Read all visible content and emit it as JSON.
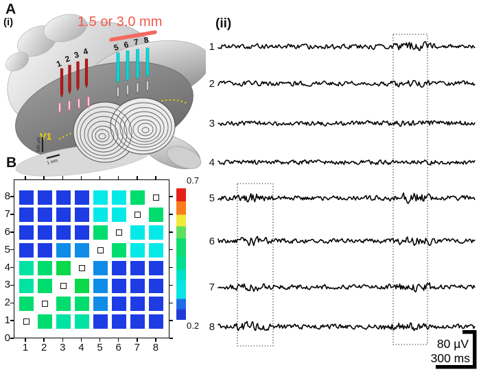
{
  "panel_a": {
    "label": "A",
    "sublabel": "(i)",
    "distance_label": "1.5 or 3.0 mm",
    "v1_label": "V1",
    "scale_vertical_label": "500 µm",
    "scale_horizontal_label": "1 mm",
    "red_electrode_labels": [
      "1",
      "2",
      "3",
      "4"
    ],
    "cyan_electrode_labels": [
      "5",
      "6",
      "7",
      "8"
    ],
    "colors": {
      "red_electrode": "#c01616",
      "cyan_electrode": "#00dcdc",
      "annotation_salmon": "#f4564c",
      "v1_yellow": "#f2d800"
    }
  },
  "panel_b": {
    "label": "B",
    "x_tick_labels": [
      "1",
      "2",
      "3",
      "4",
      "5",
      "6",
      "7",
      "8"
    ],
    "y_tick_labels": [
      "0",
      "1",
      "2",
      "3",
      "4",
      "5",
      "6",
      "7",
      "8"
    ],
    "colorbar_max_label": "0.7",
    "colorbar_min_label": "0.2",
    "palette": {
      "b": "#1e3ce4",
      "lb": "#0f8ce8",
      "c": "#06e9e9",
      "g": "#00dc6e",
      "tg": "#00e3a2",
      "bg": "#0bd84b"
    }
  },
  "panel_ii": {
    "label": "(ii)",
    "voltage_scale_label": "80 µV",
    "time_scale_label": "300 ms",
    "traces": [
      {
        "label": "1",
        "bursts": [
          [
            0.66,
            0.86,
            2.0
          ]
        ]
      },
      {
        "label": "2",
        "bursts": [
          [
            0.64,
            0.84,
            1.5
          ]
        ]
      },
      {
        "label": "3",
        "bursts": [
          [
            0.66,
            0.84,
            1.4
          ]
        ]
      },
      {
        "label": "4",
        "bursts": []
      },
      {
        "label": "5",
        "bursts": [
          [
            0.07,
            0.22,
            2.2
          ],
          [
            0.66,
            0.85,
            2.2
          ]
        ]
      },
      {
        "label": "6",
        "bursts": [
          [
            0.07,
            0.22,
            2.0
          ],
          [
            0.68,
            0.86,
            2.1
          ]
        ]
      },
      {
        "label": "7",
        "bursts": [
          [
            0.04,
            0.22,
            1.9
          ],
          [
            0.64,
            0.88,
            1.9
          ]
        ]
      },
      {
        "label": "8",
        "bursts": [
          [
            0.04,
            0.22,
            2.1
          ],
          [
            0.62,
            0.84,
            1.9
          ]
        ]
      }
    ]
  },
  "chart_data": {
    "type": "heatmap",
    "title": "",
    "x_categories": [
      "1",
      "2",
      "3",
      "4",
      "5",
      "6",
      "7",
      "8"
    ],
    "y_categories": [
      "1",
      "2",
      "3",
      "4",
      "5",
      "6",
      "7",
      "8"
    ],
    "colorbar_range": [
      0.2,
      0.7
    ],
    "diagonal_marker": "open-square",
    "cells_rows_top_to_bottom": [
      [
        "b",
        "b",
        "b",
        "b",
        "c",
        "c",
        "g",
        "diag"
      ],
      [
        "b",
        "b",
        "b",
        "b",
        "c",
        "c",
        "diag",
        "g"
      ],
      [
        "b",
        "b",
        "b",
        "b",
        "g",
        "diag",
        "c",
        "c"
      ],
      [
        "b",
        "b",
        "lb",
        "lb",
        "diag",
        "g",
        "c",
        "c"
      ],
      [
        "tg",
        "g",
        "bg",
        "diag",
        "lb",
        "b",
        "b",
        "b"
      ],
      [
        "tg",
        "g",
        "diag",
        "bg",
        "lb",
        "b",
        "b",
        "b"
      ],
      [
        "g",
        "diag",
        "g",
        "g",
        "lb",
        "b",
        "b",
        "b"
      ],
      [
        "diag",
        "g",
        "tg",
        "tg",
        "b",
        "b",
        "b",
        "b"
      ]
    ],
    "estimated_values_rows_top_to_bottom": [
      [
        0.25,
        0.25,
        0.25,
        0.25,
        0.35,
        0.35,
        0.44,
        null
      ],
      [
        0.25,
        0.25,
        0.25,
        0.25,
        0.35,
        0.35,
        null,
        0.44
      ],
      [
        0.25,
        0.25,
        0.25,
        0.25,
        0.44,
        null,
        0.35,
        0.35
      ],
      [
        0.25,
        0.25,
        0.3,
        0.3,
        null,
        0.44,
        0.35,
        0.35
      ],
      [
        0.4,
        0.44,
        0.48,
        null,
        0.3,
        0.25,
        0.25,
        0.25
      ],
      [
        0.4,
        0.44,
        null,
        0.48,
        0.3,
        0.25,
        0.25,
        0.25
      ],
      [
        0.44,
        null,
        0.44,
        0.44,
        0.3,
        0.25,
        0.25,
        0.25
      ],
      [
        null,
        0.44,
        0.4,
        0.4,
        0.25,
        0.25,
        0.25,
        0.25
      ]
    ]
  }
}
